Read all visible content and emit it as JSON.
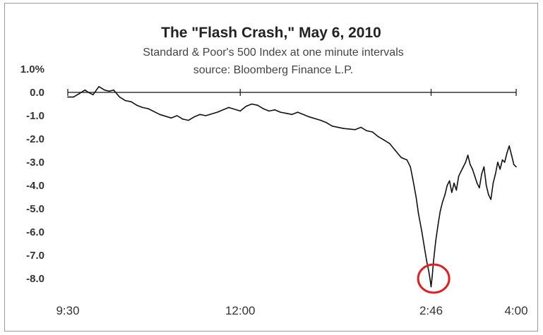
{
  "chart_data": {
    "type": "line",
    "title": "The \"Flash Crash,\" May 6, 2010",
    "subtitle_lines": [
      "Standard & Poor's 500 Index at one minute intervals",
      "source: Bloomberg Finance L.P."
    ],
    "xlabel": "",
    "ylabel": "",
    "x_tick_labels": [
      "9:30",
      "12:00",
      "2:46",
      "4:00"
    ],
    "x_tick_minutes": [
      0,
      150,
      316,
      390
    ],
    "y_tick_labels": [
      "1.0%",
      "0.0",
      "-1.0",
      "-2.0",
      "-3.0",
      "-4.0",
      "-5.0",
      "-6.0",
      "-7.0",
      "-8.0"
    ],
    "y_tick_values": [
      1,
      0,
      -1,
      -2,
      -3,
      -4,
      -5,
      -6,
      -7,
      -8
    ],
    "xlim": [
      0,
      390
    ],
    "ylim": [
      -8.5,
      1.0
    ],
    "grid": false,
    "annotation": {
      "type": "circle",
      "x_minute": 317,
      "y": -8.0,
      "color": "#e02020"
    },
    "series": [
      {
        "line_color": "#111111",
        "x_minutes": [
          0,
          5,
          10,
          15,
          18,
          22,
          27,
          32,
          36,
          40,
          45,
          50,
          55,
          60,
          65,
          70,
          80,
          90,
          95,
          100,
          105,
          110,
          115,
          120,
          130,
          140,
          150,
          155,
          160,
          165,
          170,
          175,
          180,
          185,
          190,
          195,
          200,
          210,
          220,
          225,
          230,
          240,
          250,
          255,
          260,
          265,
          270,
          275,
          280,
          285,
          290,
          295,
          298,
          300,
          303,
          305,
          308,
          310,
          312,
          314,
          315,
          316,
          317,
          318,
          320,
          322,
          324,
          326,
          328,
          330,
          332,
          334,
          336,
          338,
          340,
          342,
          344,
          346,
          348,
          350,
          352,
          354,
          356,
          358,
          360,
          362,
          364,
          366,
          368,
          370,
          372,
          374,
          376,
          378,
          380,
          382,
          384,
          386,
          388,
          390
        ],
        "values": [
          -0.2,
          -0.2,
          -0.05,
          0.1,
          0.0,
          -0.1,
          0.25,
          0.1,
          0.05,
          0.1,
          -0.2,
          -0.35,
          -0.4,
          -0.55,
          -0.65,
          -0.7,
          -0.95,
          -1.1,
          -1.0,
          -1.15,
          -1.2,
          -1.05,
          -0.95,
          -1.0,
          -0.85,
          -0.65,
          -0.8,
          -0.6,
          -0.5,
          -0.55,
          -0.7,
          -0.8,
          -0.75,
          -0.85,
          -0.9,
          -0.95,
          -0.85,
          -1.05,
          -1.2,
          -1.3,
          -1.45,
          -1.55,
          -1.6,
          -1.5,
          -1.65,
          -1.7,
          -1.9,
          -2.05,
          -2.2,
          -2.5,
          -2.8,
          -2.9,
          -3.2,
          -3.7,
          -4.5,
          -5.2,
          -6.0,
          -6.6,
          -7.2,
          -7.7,
          -8.0,
          -8.35,
          -7.9,
          -7.3,
          -6.4,
          -5.7,
          -5.1,
          -4.7,
          -4.4,
          -4.0,
          -3.8,
          -4.3,
          -3.9,
          -4.2,
          -3.6,
          -3.4,
          -3.2,
          -3.0,
          -2.7,
          -3.1,
          -3.3,
          -3.6,
          -3.9,
          -4.1,
          -3.5,
          -3.2,
          -4.0,
          -4.4,
          -4.6,
          -3.9,
          -3.5,
          -3.0,
          -3.3,
          -2.9,
          -3.0,
          -2.6,
          -2.3,
          -2.7,
          -3.1,
          -3.2
        ]
      }
    ]
  }
}
